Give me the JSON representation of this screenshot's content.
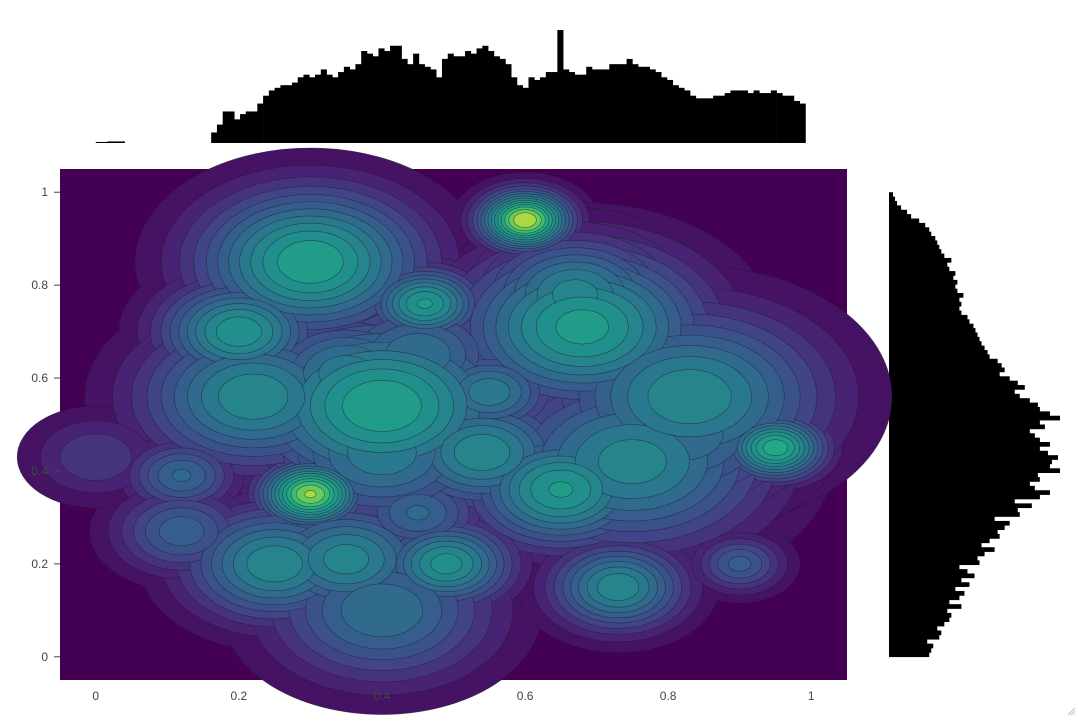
{
  "chart_data": {
    "type": "heatmap",
    "subtype": "2d-density-contour-with-marginal-histograms",
    "title": "",
    "xlabel": "",
    "ylabel": "",
    "xlim": [
      -0.05,
      1.05
    ],
    "ylim": [
      -0.05,
      1.05
    ],
    "x_ticks": [
      0,
      0.2,
      0.4,
      0.6,
      0.8,
      1
    ],
    "x_tick_labels": [
      "0",
      "0.2",
      "0.4",
      "0.6",
      "0.8",
      "1"
    ],
    "y_ticks": [
      0,
      0.2,
      0.4,
      0.6,
      0.8,
      1
    ],
    "y_tick_labels": [
      "0",
      "0.2",
      "0.4",
      "0.6",
      "0.8",
      "1"
    ],
    "colorscale": "Viridis",
    "background_color": "#440154",
    "contour_line_color": "#1a1a1a",
    "histogram_color": "#000000",
    "contour_levels": 16,
    "density_peaks": [
      {
        "x": 0.6,
        "y": 0.94,
        "weight": 1.0,
        "spread": 0.02
      },
      {
        "x": 0.3,
        "y": 0.35,
        "weight": 0.95,
        "spread": 0.022
      },
      {
        "x": 0.95,
        "y": 0.45,
        "weight": 0.8,
        "spread": 0.022
      },
      {
        "x": 0.3,
        "y": 0.85,
        "weight": 0.75,
        "spread": 0.05
      },
      {
        "x": 0.46,
        "y": 0.76,
        "weight": 0.7,
        "spread": 0.025
      },
      {
        "x": 0.68,
        "y": 0.71,
        "weight": 0.72,
        "spread": 0.055
      },
      {
        "x": 0.67,
        "y": 0.78,
        "weight": 0.6,
        "spread": 0.04
      },
      {
        "x": 0.4,
        "y": 0.54,
        "weight": 0.75,
        "spread": 0.06
      },
      {
        "x": 0.2,
        "y": 0.7,
        "weight": 0.68,
        "spread": 0.035
      },
      {
        "x": 0.22,
        "y": 0.56,
        "weight": 0.62,
        "spread": 0.05
      },
      {
        "x": 0.54,
        "y": 0.44,
        "weight": 0.62,
        "spread": 0.04
      },
      {
        "x": 0.65,
        "y": 0.36,
        "weight": 0.7,
        "spread": 0.04
      },
      {
        "x": 0.75,
        "y": 0.42,
        "weight": 0.6,
        "spread": 0.06
      },
      {
        "x": 0.83,
        "y": 0.56,
        "weight": 0.62,
        "spread": 0.06
      },
      {
        "x": 0.55,
        "y": 0.57,
        "weight": 0.55,
        "spread": 0.03
      },
      {
        "x": 0.25,
        "y": 0.2,
        "weight": 0.62,
        "spread": 0.04
      },
      {
        "x": 0.35,
        "y": 0.21,
        "weight": 0.6,
        "spread": 0.04
      },
      {
        "x": 0.49,
        "y": 0.2,
        "weight": 0.66,
        "spread": 0.03
      },
      {
        "x": 0.4,
        "y": 0.1,
        "weight": 0.5,
        "spread": 0.05
      },
      {
        "x": 0.73,
        "y": 0.15,
        "weight": 0.62,
        "spread": 0.03
      },
      {
        "x": 0.9,
        "y": 0.2,
        "weight": 0.4,
        "spread": 0.02
      },
      {
        "x": 0.12,
        "y": 0.39,
        "weight": 0.45,
        "spread": 0.025
      },
      {
        "x": 0.12,
        "y": 0.27,
        "weight": 0.42,
        "spread": 0.03
      },
      {
        "x": 0.0,
        "y": 0.43,
        "weight": 0.25,
        "spread": 0.03
      },
      {
        "x": 0.45,
        "y": 0.31,
        "weight": 0.45,
        "spread": 0.03
      },
      {
        "x": 0.4,
        "y": 0.44,
        "weight": 0.55,
        "spread": 0.05
      },
      {
        "x": 0.82,
        "y": 0.48,
        "weight": 0.5,
        "spread": 0.05
      },
      {
        "x": 0.45,
        "y": 0.65,
        "weight": 0.5,
        "spread": 0.04
      },
      {
        "x": 0.35,
        "y": 0.61,
        "weight": 0.55,
        "spread": 0.04
      }
    ],
    "x_marginal_counts": [
      2,
      2,
      3,
      3,
      3,
      0,
      0,
      0,
      0,
      0,
      0,
      0,
      0,
      0,
      0,
      0,
      0,
      0,
      0,
      0,
      20,
      35,
      60,
      60,
      45,
      55,
      60,
      60,
      75,
      90,
      100,
      105,
      110,
      110,
      115,
      125,
      130,
      125,
      130,
      140,
      130,
      125,
      135,
      145,
      140,
      150,
      175,
      170,
      165,
      180,
      175,
      185,
      185,
      160,
      150,
      170,
      150,
      145,
      140,
      125,
      160,
      170,
      165,
      165,
      175,
      170,
      180,
      185,
      175,
      165,
      160,
      150,
      125,
      110,
      105,
      125,
      120,
      125,
      135,
      135,
      215,
      140,
      135,
      130,
      130,
      145,
      140,
      140,
      140,
      150,
      150,
      150,
      160,
      150,
      145,
      145,
      140,
      135,
      125,
      120,
      110,
      105,
      100,
      90,
      85,
      85,
      85,
      90,
      90,
      95,
      100,
      100,
      100,
      95,
      100,
      95,
      95,
      100,
      95,
      90,
      90,
      80,
      75,
      0
    ],
    "y_marginal_counts": [
      40,
      42,
      44,
      38,
      50,
      52,
      48,
      55,
      60,
      62,
      58,
      72,
      60,
      70,
      75,
      66,
      80,
      72,
      85,
      78,
      70,
      90,
      88,
      95,
      105,
      92,
      100,
      110,
      108,
      115,
      120,
      105,
      130,
      128,
      142,
      125,
      150,
      160,
      145,
      140,
      150,
      148,
      170,
      160,
      162,
      168,
      158,
      150,
      160,
      150,
      145,
      140,
      155,
      150,
      170,
      160,
      150,
      148,
      140,
      130,
      125,
      135,
      128,
      120,
      110,
      115,
      112,
      108,
      100,
      98,
      95,
      92,
      90,
      88,
      86,
      84,
      80,
      78,
      72,
      70,
      72,
      70,
      74,
      68,
      66,
      68,
      64,
      66,
      60,
      58,
      62,
      55,
      52,
      50,
      48,
      46,
      42,
      40,
      36,
      30,
      22,
      18,
      12,
      8,
      6,
      4
    ]
  }
}
